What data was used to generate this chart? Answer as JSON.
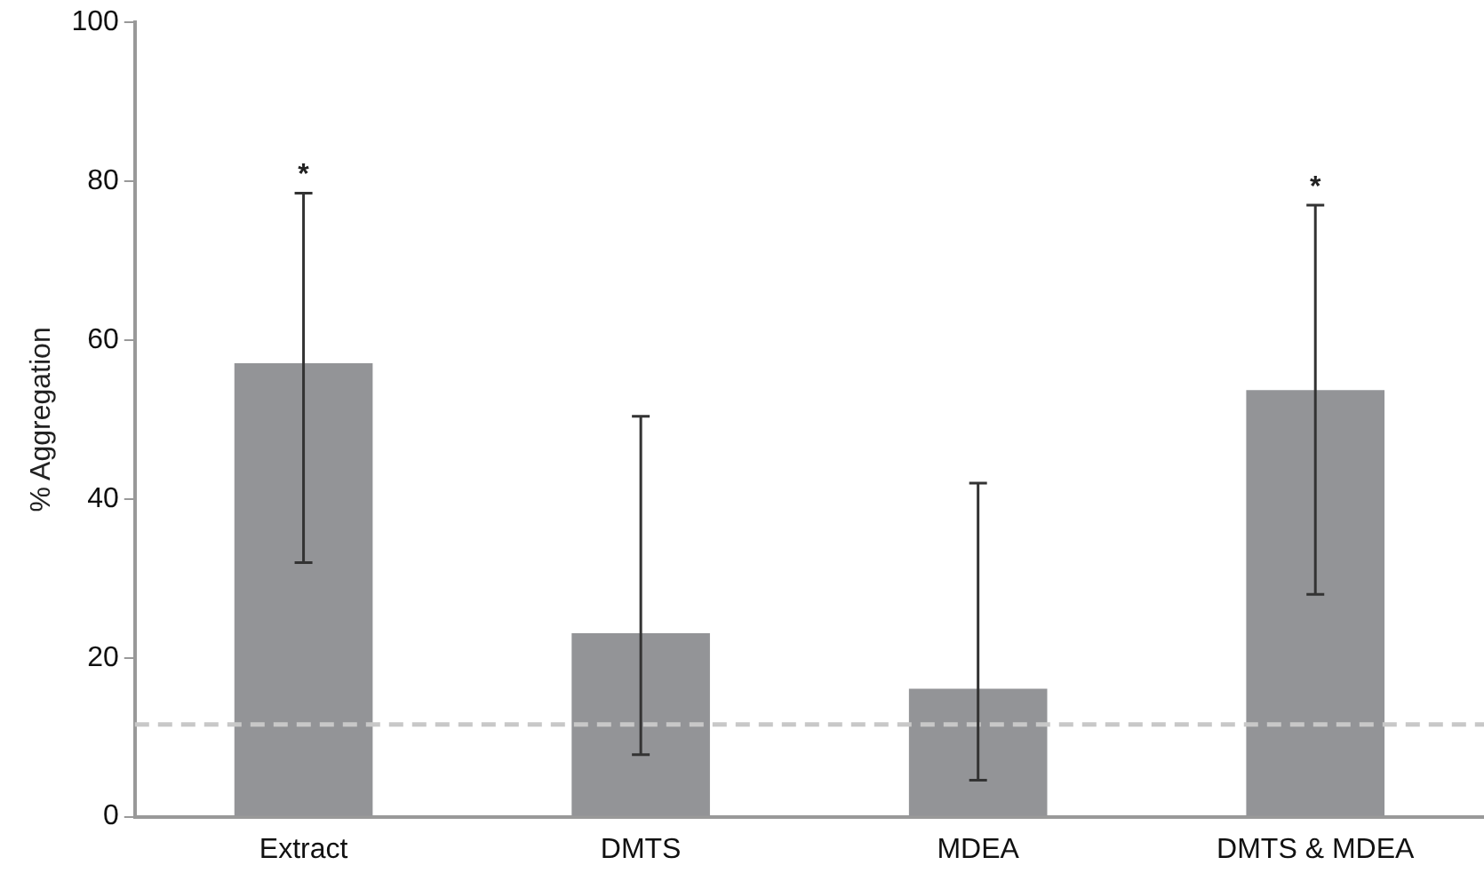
{
  "chart_data": {
    "type": "bar",
    "ylabel": "% Aggregation",
    "categories": [
      "Extract",
      "DMTS",
      "MDEA",
      "DMTS & MDEA"
    ],
    "values": [
      57.1,
      23.1,
      16.1,
      53.7
    ],
    "errors": [
      [
        32,
        78.5
      ],
      [
        7.8,
        50.4
      ],
      [
        4.6,
        42
      ],
      [
        28,
        77
      ]
    ],
    "color": "#939497",
    "ylim": [
      0,
      100
    ],
    "yticks": [
      0,
      20,
      40,
      60,
      80,
      100
    ],
    "grid": false,
    "legend": false,
    "ref_lines": [
      {
        "axis": "y",
        "value": 11.6,
        "color": "#c8c8c8",
        "line_style": "dashed"
      }
    ],
    "annotations": [
      {
        "text": "*",
        "x": "Extract",
        "y": 78.5
      },
      {
        "text": "*",
        "x": "DMTS & MDEA",
        "y": 77
      }
    ]
  }
}
